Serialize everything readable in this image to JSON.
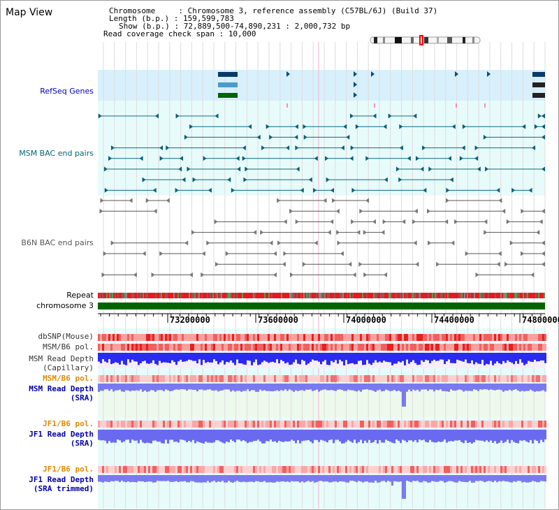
{
  "title": "Map View",
  "info": {
    "chromosome_key": "Chromosome     : ",
    "chromosome_val": "Chromosome 3, reference assembly (C57BL/6J) (Build 37)",
    "length_key": "Length (b.p.) : ",
    "length_val": "159,599,783",
    "show_key": "Show (b.p.) : ",
    "show_val": "72,889,500-74,890,231 : 2,000,732 bp",
    "coverage_key": "Read coverage check span : ",
    "coverage_val": "10,000"
  },
  "tracks": {
    "refseq": "RefSeq Genes",
    "msm_bac": "MSM BAC end pairs",
    "b6n_bac": "B6N BAC end pairs",
    "repeat": "Repeat",
    "chromosome": "chromosome 3",
    "dbsnp": "dbSNP(Mouse)",
    "msm_b6_pol": "MSM/B6 pol.",
    "msm_read_cap_1": "MSM Read Depth",
    "msm_read_cap_2": "(Capillary)",
    "msm_b6_pol_2": "MSM/B6 pol.",
    "msm_read_sra_1": "MSM Read Depth",
    "msm_read_sra_2": "(SRA)",
    "jf1_b6_pol": "JF1/B6 pol.",
    "jf1_read_sra_1": "JF1 Read Depth",
    "jf1_read_sra_2": "(SRA)",
    "jf1_b6_pol_2": "JF1/B6 pol.",
    "jf1_read_trim_1": "JF1 Read Depth",
    "jf1_read_trim_2": "(SRA trimmed)"
  },
  "axis": {
    "ticks": [
      "73200000",
      "73600000",
      "74000000",
      "74400000",
      "74800000"
    ]
  },
  "colors": {
    "refseq_label": "#0000bb",
    "msm_bac_label": "#006677",
    "b6n_bac_label": "#555555",
    "msm_depth_label": "#0000aa",
    "pol_label": "#e08a00",
    "refseq_bg": "#d8f0fb",
    "lower_bg": "#e8fbfb",
    "chromosome_bar": "#006400"
  }
}
